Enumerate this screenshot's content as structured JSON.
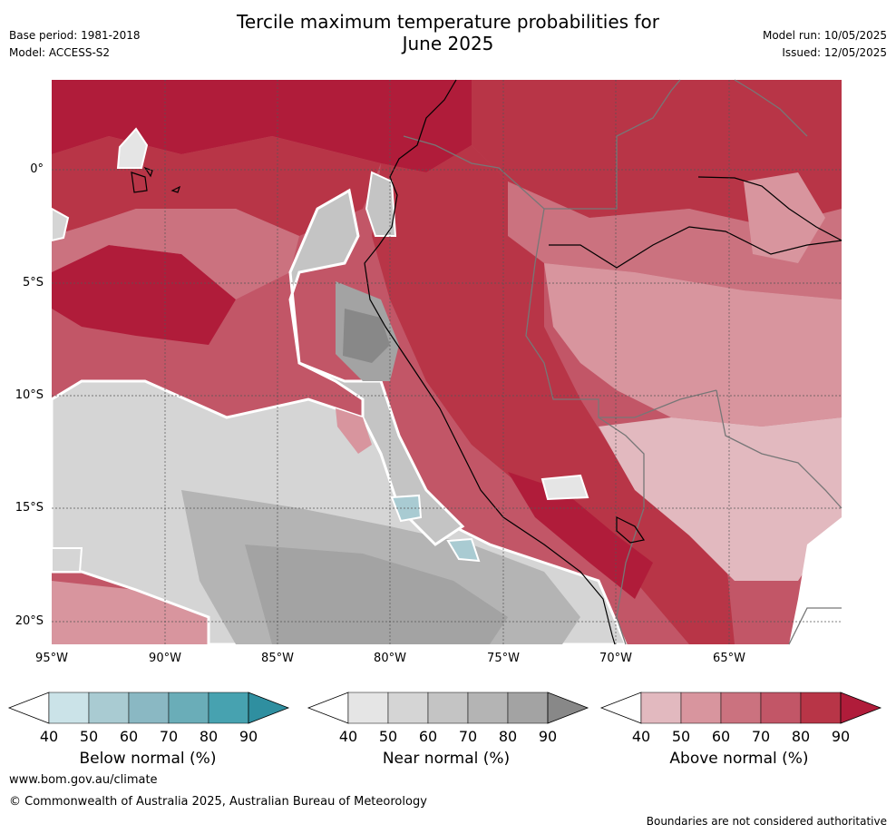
{
  "header": {
    "title_line1": "Tercile maximum temperature probabilities for",
    "title_line2": "June 2025",
    "base_period": "Base period: 1981-2018",
    "model": "Model: ACCESS-S2",
    "model_run": "Model run: 10/05/2025",
    "issued": "Issued: 12/05/2025"
  },
  "map": {
    "lon_range": [
      -95,
      -60
    ],
    "lat_range": [
      -21,
      4
    ],
    "x_ticks": [
      "95°W",
      "90°W",
      "85°W",
      "80°W",
      "75°W",
      "70°W",
      "65°W"
    ],
    "y_ticks": [
      "0°",
      "5°S",
      "10°S",
      "15°S",
      "20°S"
    ],
    "gridlines": true
  },
  "colorbars": [
    {
      "label": "Below normal (%)",
      "ticks": [
        "40",
        "50",
        "60",
        "70",
        "80",
        "90"
      ],
      "colors": [
        "#ffffff",
        "#cbe3e8",
        "#a9cbd2",
        "#8ab8c3",
        "#6aadb8",
        "#47a2b0",
        "#2f8fa0"
      ]
    },
    {
      "label": "Near normal (%)",
      "ticks": [
        "40",
        "50",
        "60",
        "70",
        "80",
        "90"
      ],
      "colors": [
        "#ffffff",
        "#e5e5e5",
        "#d5d5d5",
        "#c4c4c4",
        "#b4b4b4",
        "#a3a3a3",
        "#888888"
      ]
    },
    {
      "label": "Above normal (%)",
      "ticks": [
        "40",
        "50",
        "60",
        "70",
        "80",
        "90"
      ],
      "colors": [
        "#ffffff",
        "#e2b9bf",
        "#d8959e",
        "#cb727f",
        "#c25667",
        "#b83547",
        "#b01c3a"
      ]
    }
  ],
  "footer": {
    "url": "www.bom.gov.au/climate",
    "copyright": "© Commonwealth of Australia 2025, Australian Bureau of Meteorology",
    "disclaimer": "Boundaries are not considered authoritative"
  }
}
